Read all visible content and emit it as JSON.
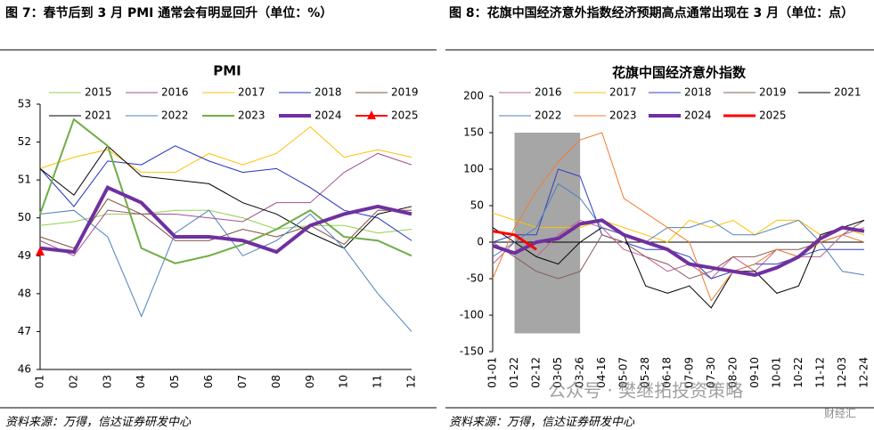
{
  "chart_data": [
    {
      "type": "line",
      "figure_title": "图 7：春节后到 3 月 PMI 通常会有明显回升（单位：%）",
      "title": "PMI",
      "source": "资料来源：万得，信达证券研发中心",
      "categories": [
        "01",
        "02",
        "03",
        "04",
        "05",
        "06",
        "07",
        "08",
        "09",
        "10",
        "11",
        "12"
      ],
      "ylim": [
        46,
        53
      ],
      "yticks": [
        46,
        47,
        48,
        49,
        50,
        51,
        52,
        53
      ],
      "series": [
        {
          "name": "2015",
          "color": "#92d050",
          "width": 1,
          "values": [
            49.8,
            49.9,
            50.1,
            50.1,
            50.2,
            50.2,
            50.0,
            49.7,
            49.8,
            49.8,
            49.6,
            49.7
          ]
        },
        {
          "name": "2016",
          "color": "#a0508f",
          "width": 1,
          "values": [
            49.4,
            49.0,
            50.2,
            50.1,
            50.1,
            50.0,
            49.9,
            50.4,
            50.4,
            51.2,
            51.7,
            51.4
          ]
        },
        {
          "name": "2017",
          "color": "#ffc000",
          "width": 1,
          "values": [
            51.3,
            51.6,
            51.8,
            51.2,
            51.2,
            51.7,
            51.4,
            51.7,
            52.4,
            51.6,
            51.8,
            51.6
          ]
        },
        {
          "name": "2018",
          "color": "#2030c0",
          "width": 1,
          "values": [
            51.3,
            50.3,
            51.5,
            51.4,
            51.9,
            51.5,
            51.2,
            51.3,
            50.8,
            50.2,
            50.0,
            49.4
          ]
        },
        {
          "name": "2019",
          "color": "#7f4f3f",
          "width": 1,
          "values": [
            49.5,
            49.2,
            50.5,
            50.1,
            49.4,
            49.4,
            49.7,
            49.5,
            49.8,
            49.3,
            50.2,
            50.2
          ]
        },
        {
          "name": "2021",
          "color": "#000000",
          "width": 1,
          "values": [
            51.3,
            50.6,
            51.9,
            51.1,
            51.0,
            50.9,
            50.4,
            50.1,
            49.6,
            49.2,
            50.1,
            50.3
          ]
        },
        {
          "name": "2022",
          "color": "#4f81bd",
          "width": 1,
          "values": [
            50.1,
            50.2,
            49.5,
            47.4,
            49.6,
            50.2,
            49.0,
            49.4,
            50.1,
            49.2,
            48.0,
            47.0
          ]
        },
        {
          "name": "2023",
          "color": "#70ad47",
          "width": 2,
          "values": [
            50.1,
            52.6,
            51.9,
            49.2,
            48.8,
            49.0,
            49.3,
            49.7,
            50.2,
            49.5,
            49.4,
            49.0
          ]
        },
        {
          "name": "2024",
          "color": "#7030a0",
          "width": 4,
          "values": [
            49.2,
            49.1,
            50.8,
            50.4,
            49.5,
            49.5,
            49.4,
            49.1,
            49.8,
            50.1,
            50.3,
            50.1
          ]
        },
        {
          "name": "2025",
          "color": "#ff0000",
          "width": 2,
          "marker": "triangle",
          "values": [
            49.1,
            null,
            null,
            null,
            null,
            null,
            null,
            null,
            null,
            null,
            null,
            null
          ]
        }
      ]
    },
    {
      "type": "line",
      "figure_title": "图 8：花旗中国经济意外指数经济预期高点通常出现在 3 月（单位：点）",
      "title": "花旗中国经济意外指数",
      "source": "资料来源：万得，信达证券研发中心",
      "watermark": "公众号 · 樊继拓投资策略",
      "logo_text": "财经汇",
      "categories": [
        "01-01",
        "01-22",
        "02-12",
        "03-05",
        "03-26",
        "04-16",
        "05-07",
        "05-28",
        "06-18",
        "07-09",
        "07-30",
        "08-20",
        "09-10",
        "10-01",
        "10-22",
        "11-12",
        "12-03",
        "12-24"
      ],
      "ylim": [
        -150,
        200
      ],
      "yticks": [
        -150,
        -100,
        -50,
        0,
        50,
        100,
        150,
        200
      ],
      "shaded_range": {
        "x": [
          "01-22",
          "03-26"
        ],
        "y": [
          -125,
          150
        ],
        "color": "#a6a6a6"
      },
      "series": [
        {
          "name": "2016",
          "color": "#c06090",
          "width": 1,
          "values": [
            -30,
            0,
            -20,
            10,
            30,
            20,
            -10,
            -20,
            -40,
            -30,
            -50,
            -20,
            -40,
            -10,
            -20,
            -20,
            10,
            20
          ]
        },
        {
          "name": "2017",
          "color": "#ffc000",
          "width": 1,
          "values": [
            40,
            30,
            20,
            20,
            20,
            30,
            20,
            10,
            0,
            30,
            20,
            30,
            10,
            30,
            30,
            10,
            20,
            10
          ]
        },
        {
          "name": "2018",
          "color": "#3040c0",
          "width": 1,
          "values": [
            0,
            10,
            10,
            100,
            90,
            10,
            0,
            -10,
            -10,
            -20,
            -50,
            -40,
            -30,
            -30,
            -20,
            -10,
            -10,
            -10
          ]
        },
        {
          "name": "2019",
          "color": "#8b5a5a",
          "width": 1,
          "values": [
            0,
            -20,
            -40,
            -50,
            -40,
            10,
            0,
            -20,
            -30,
            -50,
            -40,
            -20,
            -20,
            -10,
            -10,
            0,
            10,
            30
          ]
        },
        {
          "name": "2021",
          "color": "#000000",
          "width": 1,
          "values": [
            20,
            0,
            -20,
            -30,
            0,
            20,
            10,
            -60,
            -70,
            -60,
            -90,
            -40,
            -40,
            -70,
            -60,
            10,
            20,
            30
          ]
        },
        {
          "name": "2022",
          "color": "#4f81bd",
          "width": 1,
          "values": [
            -20,
            0,
            20,
            80,
            60,
            20,
            10,
            0,
            20,
            20,
            30,
            10,
            10,
            20,
            30,
            0,
            -40,
            -45
          ]
        },
        {
          "name": "2023",
          "color": "#ed7d31",
          "width": 1,
          "values": [
            -50,
            20,
            70,
            110,
            140,
            150,
            60,
            40,
            20,
            0,
            -80,
            -40,
            -30,
            -10,
            -20,
            0,
            10,
            0
          ]
        },
        {
          "name": "2024",
          "color": "#7030a0",
          "width": 4,
          "values": [
            -5,
            -15,
            0,
            5,
            25,
            30,
            10,
            0,
            -10,
            -30,
            -35,
            -40,
            -45,
            -35,
            -20,
            5,
            20,
            15
          ]
        },
        {
          "name": "2025",
          "color": "#ff0000",
          "width": 3,
          "values": [
            15,
            10,
            -10,
            null,
            null,
            null,
            null,
            null,
            null,
            null,
            null,
            null,
            null,
            null,
            null,
            null,
            null,
            null
          ]
        }
      ]
    }
  ]
}
